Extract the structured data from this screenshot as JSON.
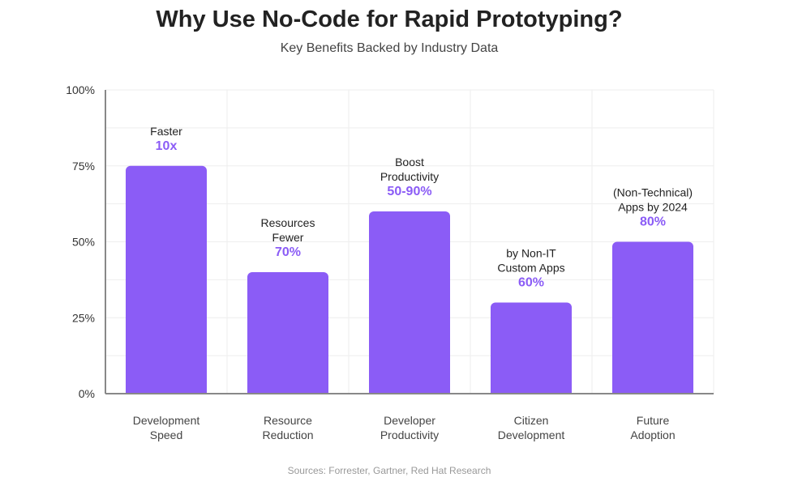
{
  "title": "Why Use No-Code for Rapid Prototyping?",
  "subtitle": "Key Benefits Backed by Industry Data",
  "source": "Sources: Forrester, Gartner, Red Hat Research",
  "colors": {
    "bar": "#8b5cf6",
    "value_label": "#8b5cf6",
    "axis": "#888888",
    "grid": "#eeeeee"
  },
  "chart_data": {
    "type": "bar",
    "categories": [
      [
        "Development",
        "Speed"
      ],
      [
        "Resource",
        "Reduction"
      ],
      [
        "Developer",
        "Productivity"
      ],
      [
        "Citizen",
        "Development"
      ],
      [
        "Future",
        "Adoption"
      ]
    ],
    "values": [
      75,
      40,
      60,
      30,
      50
    ],
    "ylim": [
      0,
      100
    ],
    "yticks": [
      {
        "value": 100,
        "label": "100%"
      },
      {
        "value": 75,
        "label": "75%"
      },
      {
        "value": 50,
        "label": "50%"
      },
      {
        "value": 25,
        "label": "25%"
      },
      {
        "value": 0,
        "label": "0%"
      }
    ],
    "annotations": [
      {
        "lines": [
          "Faster"
        ],
        "value": "10x"
      },
      {
        "lines": [
          "Resources",
          "Fewer"
        ],
        "value": "70%"
      },
      {
        "lines": [
          "Boost",
          "Productivity"
        ],
        "value": "50-90%"
      },
      {
        "lines": [
          "by Non-IT",
          "Custom Apps"
        ],
        "value": "60%"
      },
      {
        "lines": [
          "(Non-Technical)",
          "Apps by 2024"
        ],
        "value": "80%"
      }
    ],
    "grid": true
  }
}
